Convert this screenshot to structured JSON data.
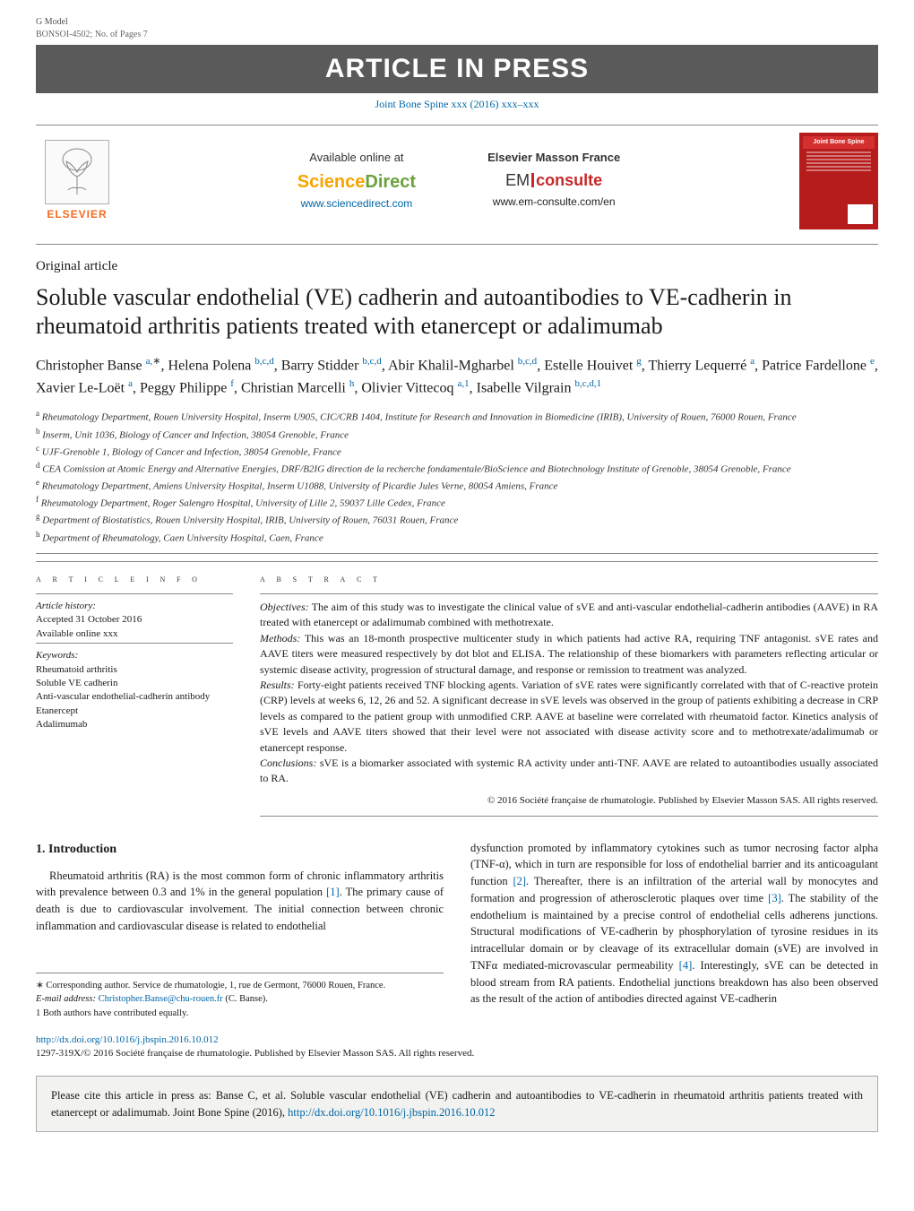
{
  "top": {
    "gmodel": "G Model",
    "artno": "BONSOI-4502;  No. of Pages 7",
    "aip": "ARTICLE IN PRESS",
    "journal_ref": "Joint Bone Spine xxx (2016) xxx–xxx"
  },
  "banner": {
    "elsevier_word": "ELSEVIER",
    "available_at": "Available online at",
    "sd1": "Science",
    "sd2": "Direct",
    "sd_url": "www.sciencedirect.com",
    "emf": "Elsevier Masson France",
    "em": "EM",
    "consulte": "consulte",
    "em_url": "www.em-consulte.com/en",
    "cover_title": "Joint Bone Spine"
  },
  "article": {
    "type": "Original article",
    "title": "Soluble vascular endothelial (VE) cadherin and autoantibodies to VE-cadherin in rheumatoid arthritis patients treated with etanercept or adalimumab"
  },
  "authors": [
    {
      "name": "Christopher Banse",
      "aff": "a,",
      "star": "∗"
    },
    {
      "name": "Helena Polena",
      "aff": "b,c,d"
    },
    {
      "name": "Barry Stidder",
      "aff": "b,c,d"
    },
    {
      "name": "Abir Khalil-Mgharbel",
      "aff": "b,c,d"
    },
    {
      "name": "Estelle Houivet",
      "aff": "g"
    },
    {
      "name": "Thierry Lequerré",
      "aff": "a"
    },
    {
      "name": "Patrice Fardellone",
      "aff": "e"
    },
    {
      "name": "Xavier Le-Loët",
      "aff": "a"
    },
    {
      "name": "Peggy Philippe",
      "aff": "f"
    },
    {
      "name": "Christian Marcelli",
      "aff": "h"
    },
    {
      "name": "Olivier Vittecoq",
      "aff": "a,1"
    },
    {
      "name": "Isabelle Vilgrain",
      "aff": "b,c,d,1"
    }
  ],
  "affiliations": [
    {
      "sup": "a",
      "text": "Rheumatology Department, Rouen University Hospital, Inserm U905, CIC/CRB 1404, Institute for Research and Innovation in Biomedicine (IRIB), University of Rouen, 76000 Rouen, France"
    },
    {
      "sup": "b",
      "text": "Inserm, Unit 1036, Biology of Cancer and Infection, 38054 Grenoble, France"
    },
    {
      "sup": "c",
      "text": "UJF-Grenoble 1, Biology of Cancer and Infection, 38054 Grenoble, France"
    },
    {
      "sup": "d",
      "text": "CEA Comission at Atomic Energy and Alternative Energies, DRF/B2IG direction de la recherche fondamentale/BioScience and Biotechnology Institute of Grenoble, 38054 Grenoble, France"
    },
    {
      "sup": "e",
      "text": "Rheumatology Department, Amiens University Hospital, Inserm U1088, University of Picardie Jules Verne, 80054 Amiens, France"
    },
    {
      "sup": "f",
      "text": "Rheumatology Department, Roger Salengro Hospital, University of Lille 2, 59037 Lille Cedex, France"
    },
    {
      "sup": "g",
      "text": "Department of Biostatistics, Rouen University Hospital, IRIB, University of Rouen, 76031 Rouen, France"
    },
    {
      "sup": "h",
      "text": "Department of Rheumatology, Caen University Hospital, Caen, France"
    }
  ],
  "info": {
    "head": "a r t i c l e   i n f o",
    "history_label": "Article history:",
    "accepted": "Accepted 31 October 2016",
    "online": "Available online xxx",
    "keywords_label": "Keywords:",
    "keywords": [
      "Rheumatoid arthritis",
      "Soluble VE cadherin",
      "Anti-vascular endothelial-cadherin antibody",
      "Etanercept",
      "Adalimumab"
    ]
  },
  "abstract": {
    "head": "a b s t r a c t",
    "objectives_label": "Objectives:",
    "objectives": " The aim of this study was to investigate the clinical value of sVE and anti-vascular endothelial-cadherin antibodies (AAVE) in RA treated with etanercept or adalimumab combined with methotrexate.",
    "methods_label": "Methods:",
    "methods": " This was an 18-month prospective multicenter study in which patients had active RA, requiring TNF antagonist. sVE rates and AAVE titers were measured respectively by dot blot and ELISA. The relationship of these biomarkers with parameters reflecting articular or systemic disease activity, progression of structural damage, and response or remission to treatment was analyzed.",
    "results_label": "Results:",
    "results": " Forty-eight patients received TNF blocking agents. Variation of sVE rates were significantly correlated with that of C-reactive protein (CRP) levels at weeks 6, 12, 26 and 52. A significant decrease in sVE levels was observed in the group of patients exhibiting a decrease in CRP levels as compared to the patient group with unmodified CRP. AAVE at baseline were correlated with rheumatoid factor. Kinetics analysis of sVE levels and AAVE titers showed that their level were not associated with disease activity score and to methotrexate/adalimumab or etanercept response.",
    "conclusions_label": "Conclusions:",
    "conclusions": " sVE is a biomarker associated with systemic RA activity under anti-TNF. AAVE are related to autoantibodies usually associated to RA.",
    "copyright": "© 2016 Société française de rhumatologie. Published by Elsevier Masson SAS. All rights reserved."
  },
  "body": {
    "intro_head": "1.  Introduction",
    "intro1": "Rheumatoid arthritis (RA) is the most common form of chronic inflammatory arthritis with prevalence between 0.3 and 1% in the general population ",
    "ref1": "[1]",
    "intro1b": ". The primary cause of death is due to cardiovascular involvement. The initial connection between chronic inflammation and cardiovascular disease is related to endothelial",
    "intro2a": "dysfunction promoted by inflammatory cytokines such as tumor necrosing factor alpha (TNF-α), which in turn are responsible for loss of endothelial barrier and its anticoagulant function ",
    "ref2": "[2]",
    "intro2b": ". Thereafter, there is an infiltration of the arterial wall by monocytes and formation and progression of atherosclerotic plaques over time ",
    "ref3": "[3]",
    "intro2c": ". The stability of the endothelium is maintained by a precise control of endothelial cells adherens junctions. Structural modifications of VE-cadherin by phosphorylation of tyrosine residues in its intracellular domain or by cleavage of its extracellular domain (sVE) are involved in TNFα mediated-microvascular permeability ",
    "ref4": "[4]",
    "intro2d": ". Interestingly, sVE can be detected in blood stream from RA patients. Endothelial junctions breakdown has also been observed as the result of the action of antibodies directed against VE-cadherin"
  },
  "notes": {
    "corr_label": "∗ Corresponding author. Service de rhumatologie, 1, rue de Germont, 76000 Rouen, France.",
    "email_label": "E-mail address: ",
    "email": "Christopher.Banse@chu-rouen.fr",
    "email_tail": " (C. Banse).",
    "equal": "1 Both authors have contributed equally."
  },
  "doi": {
    "url": "http://dx.doi.org/10.1016/j.jbspin.2016.10.012",
    "legal": "1297-319X/© 2016 Société française de rhumatologie. Published by Elsevier Masson SAS. All rights reserved."
  },
  "citebox": {
    "text1": "Please cite this article in press as: Banse C, et al. Soluble vascular endothelial (VE) cadherin and autoantibodies to VE-cadherin in rheumatoid arthritis patients treated with etanercept or adalimumab. Joint Bone Spine (2016), ",
    "link": "http://dx.doi.org/10.1016/j.jbspin.2016.10.012"
  }
}
